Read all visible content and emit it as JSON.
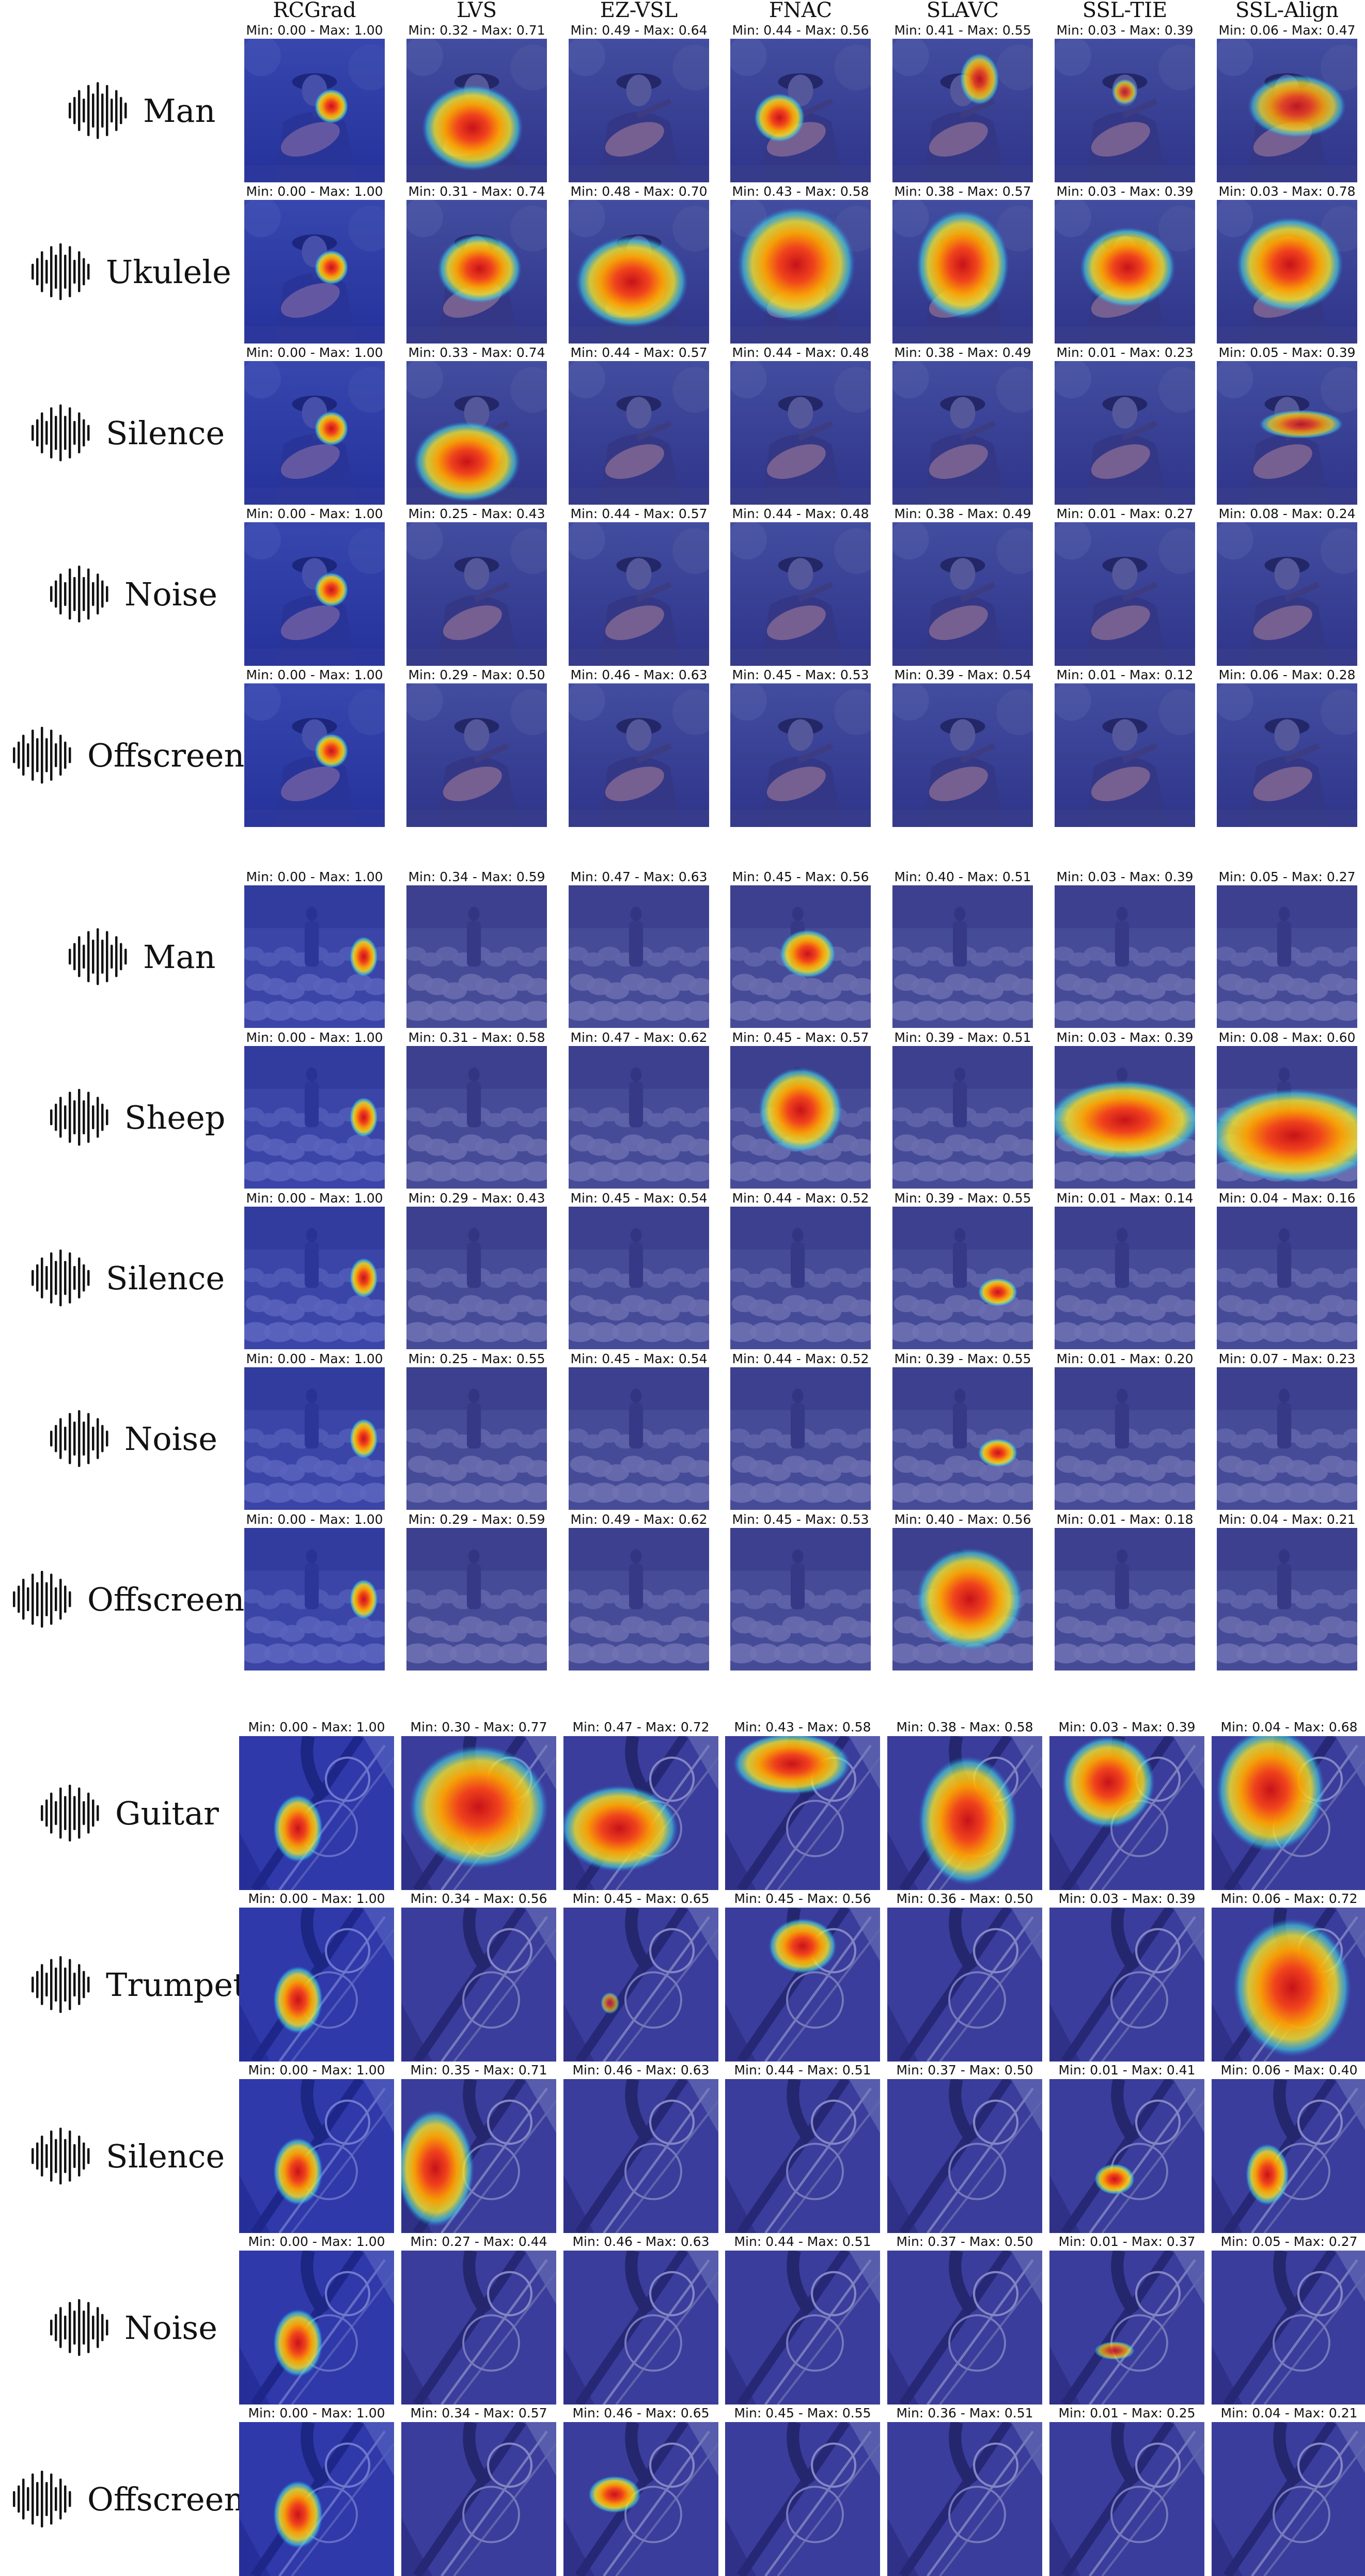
{
  "columns": [
    "RCGrad",
    "LVS",
    "EZ-VSL",
    "FNAC",
    "SLAVC",
    "SSL-TIE",
    "SSL-Align"
  ],
  "colors": {
    "overlay_blue": "#2c3fae",
    "overlay_purple": "#4b4f9a",
    "heat_red": "#e0211a",
    "heat_orange": "#ff9a00",
    "heat_yellow": "#f4e62a",
    "heat_cyan": "#39d7e6"
  },
  "groups": [
    {
      "scene": "man-playing-ukulele",
      "rows": [
        {
          "label": "Man",
          "icon": "waveform-icon",
          "ranges": [
            "Min: 0.00 - Max: 1.00",
            "Min: 0.32 - Max: 0.71",
            "Min: 0.49 - Max: 0.64",
            "Min: 0.44 - Max: 0.56",
            "Min: 0.41 - Max: 0.55",
            "Min: 0.03 - Max: 0.39",
            "Min: 0.06 - Max: 0.47"
          ]
        },
        {
          "label": "Ukulele",
          "icon": "waveform-icon",
          "ranges": [
            "Min: 0.00 - Max: 1.00",
            "Min: 0.31 - Max: 0.74",
            "Min: 0.48 - Max: 0.70",
            "Min: 0.43 - Max: 0.58",
            "Min: 0.38 - Max: 0.57",
            "Min: 0.03 - Max: 0.39",
            "Min: 0.03 - Max: 0.78"
          ]
        },
        {
          "label": "Silence",
          "icon": "waveform-icon",
          "ranges": [
            "Min: 0.00 - Max: 1.00",
            "Min: 0.33 - Max: 0.74",
            "Min: 0.44 - Max: 0.57",
            "Min: 0.44 - Max: 0.48",
            "Min: 0.38 - Max: 0.49",
            "Min: 0.01 - Max: 0.23",
            "Min: 0.05 - Max: 0.39"
          ]
        },
        {
          "label": "Noise",
          "icon": "waveform-icon",
          "ranges": [
            "Min: 0.00 - Max: 1.00",
            "Min: 0.25 - Max: 0.43",
            "Min: 0.44 - Max: 0.57",
            "Min: 0.44 - Max: 0.48",
            "Min: 0.38 - Max: 0.49",
            "Min: 0.01 - Max: 0.27",
            "Min: 0.08 - Max: 0.24"
          ]
        },
        {
          "label": "Offscreen",
          "icon": "waveform-icon",
          "ranges": [
            "Min: 0.00 - Max: 1.00",
            "Min: 0.29 - Max: 0.50",
            "Min: 0.46 - Max: 0.63",
            "Min: 0.45 - Max: 0.53",
            "Min: 0.39 - Max: 0.54",
            "Min: 0.01 - Max: 0.12",
            "Min: 0.06 - Max: 0.28"
          ]
        }
      ]
    },
    {
      "scene": "man-with-sheep",
      "rows": [
        {
          "label": "Man",
          "icon": "waveform-icon",
          "ranges": [
            "Min: 0.00 - Max: 1.00",
            "Min: 0.34 - Max: 0.59",
            "Min: 0.47 - Max: 0.63",
            "Min: 0.45 - Max: 0.56",
            "Min: 0.40 - Max: 0.51",
            "Min: 0.03 - Max: 0.39",
            "Min: 0.05 - Max: 0.27"
          ]
        },
        {
          "label": "Sheep",
          "icon": "waveform-icon",
          "ranges": [
            "Min: 0.00 - Max: 1.00",
            "Min: 0.31 - Max: 0.58",
            "Min: 0.47 - Max: 0.62",
            "Min: 0.45 - Max: 0.57",
            "Min: 0.39 - Max: 0.51",
            "Min: 0.03 - Max: 0.39",
            "Min: 0.08 - Max: 0.60"
          ]
        },
        {
          "label": "Silence",
          "icon": "waveform-icon",
          "ranges": [
            "Min: 0.00 - Max: 1.00",
            "Min: 0.29 - Max: 0.43",
            "Min: 0.45 - Max: 0.54",
            "Min: 0.44 - Max: 0.52",
            "Min: 0.39 - Max: 0.55",
            "Min: 0.01 - Max: 0.14",
            "Min: 0.04 - Max: 0.16"
          ]
        },
        {
          "label": "Noise",
          "icon": "waveform-icon",
          "ranges": [
            "Min: 0.00 - Max: 1.00",
            "Min: 0.25 - Max: 0.55",
            "Min: 0.45 - Max: 0.54",
            "Min: 0.44 - Max: 0.52",
            "Min: 0.39 - Max: 0.55",
            "Min: 0.01 - Max: 0.20",
            "Min: 0.07 - Max: 0.23"
          ]
        },
        {
          "label": "Offscreen",
          "icon": "waveform-icon",
          "ranges": [
            "Min: 0.00 - Max: 1.00",
            "Min: 0.29 - Max: 0.59",
            "Min: 0.49 - Max: 0.62",
            "Min: 0.45 - Max: 0.53",
            "Min: 0.40 - Max: 0.56",
            "Min: 0.01 - Max: 0.18",
            "Min: 0.04 - Max: 0.21"
          ]
        }
      ]
    },
    {
      "scene": "guitar-and-trumpet",
      "rows": [
        {
          "label": "Guitar",
          "icon": "waveform-icon",
          "ranges": [
            "Min: 0.00 - Max: 1.00",
            "Min: 0.30 - Max: 0.77",
            "Min: 0.47 - Max: 0.72",
            "Min: 0.43 - Max: 0.58",
            "Min: 0.38 - Max: 0.58",
            "Min: 0.03 - Max: 0.39",
            "Min: 0.04 - Max: 0.68"
          ]
        },
        {
          "label": "Trumpet",
          "icon": "waveform-icon",
          "ranges": [
            "Min: 0.00 - Max: 1.00",
            "Min: 0.34 - Max: 0.56",
            "Min: 0.45 - Max: 0.65",
            "Min: 0.45 - Max: 0.56",
            "Min: 0.36 - Max: 0.50",
            "Min: 0.03 - Max: 0.39",
            "Min: 0.06 - Max: 0.72"
          ]
        },
        {
          "label": "Silence",
          "icon": "waveform-icon",
          "ranges": [
            "Min: 0.00 - Max: 1.00",
            "Min: 0.35 - Max: 0.71",
            "Min: 0.46 - Max: 0.63",
            "Min: 0.44 - Max: 0.51",
            "Min: 0.37 - Max: 0.50",
            "Min: 0.01 - Max: 0.41",
            "Min: 0.06 - Max: 0.40"
          ]
        },
        {
          "label": "Noise",
          "icon": "waveform-icon",
          "ranges": [
            "Min: 0.00 - Max: 1.00",
            "Min: 0.27 - Max: 0.44",
            "Min: 0.46 - Max: 0.63",
            "Min: 0.44 - Max: 0.51",
            "Min: 0.37 - Max: 0.50",
            "Min: 0.01 - Max: 0.37",
            "Min: 0.05 - Max: 0.27"
          ]
        },
        {
          "label": "Offscreen",
          "icon": "waveform-icon",
          "ranges": [
            "Min: 0.00 - Max: 1.00",
            "Min: 0.34 - Max: 0.57",
            "Min: 0.46 - Max: 0.65",
            "Min: 0.45 - Max: 0.55",
            "Min: 0.36 - Max: 0.51",
            "Min: 0.01 - Max: 0.25",
            "Min: 0.04 - Max: 0.21"
          ]
        }
      ]
    }
  ]
}
